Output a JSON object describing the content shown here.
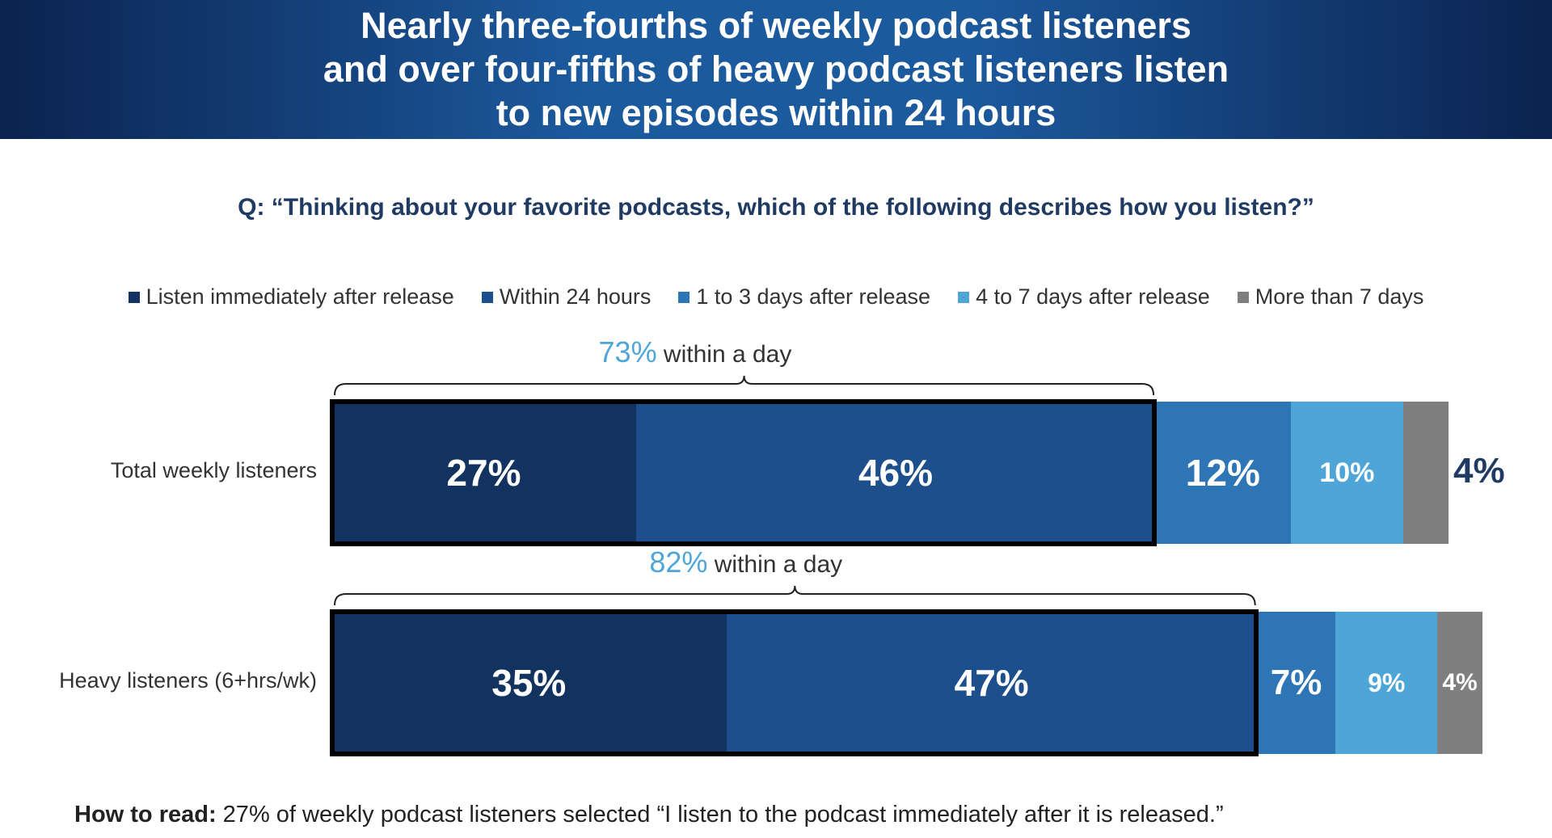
{
  "title": "Nearly three-fourths of weekly podcast listeners\nand over four-fifths of heavy podcast listeners listen\nto new episodes within 24 hours",
  "question": "Q: “Thinking about your favorite podcasts, which of the following describes how you listen?”",
  "footer": {
    "bold": "How to read:",
    "text": " 27% of weekly podcast listeners selected “I listen to the podcast immediately after it is released.”"
  },
  "annotations": [
    {
      "pct": "73%",
      "text": " within a day"
    },
    {
      "pct": "82%",
      "text": " within a day"
    }
  ],
  "colors": {
    "immediately": "#12335f",
    "within24": "#1c4f8b",
    "days1to3": "#2e75b6",
    "days4to7": "#4ea6d8",
    "more7": "#7f7f7f",
    "accent": "#4ea6d8",
    "banner": "#1c5a9e"
  },
  "chart_data": {
    "type": "bar",
    "orientation": "horizontal",
    "stacked": true,
    "categories": [
      "Total weekly listeners",
      "Heavy listeners (6+hrs/wk)"
    ],
    "series": [
      {
        "name": "Listen immediately after release",
        "values": [
          27,
          35
        ],
        "labels": [
          "27%",
          "35%"
        ]
      },
      {
        "name": "Within 24 hours",
        "values": [
          46,
          47
        ],
        "labels": [
          "46%",
          "47%"
        ]
      },
      {
        "name": "1 to 3 days after release",
        "values": [
          12,
          7
        ],
        "labels": [
          "12%",
          "7%"
        ]
      },
      {
        "name": "4 to 7 days after release",
        "values": [
          10,
          9
        ],
        "labels": [
          "10%",
          "9%"
        ]
      },
      {
        "name": "More than 7 days",
        "values": [
          4,
          4
        ],
        "labels": [
          "4%",
          "4%"
        ]
      }
    ],
    "legend": "top",
    "grid": false
  }
}
